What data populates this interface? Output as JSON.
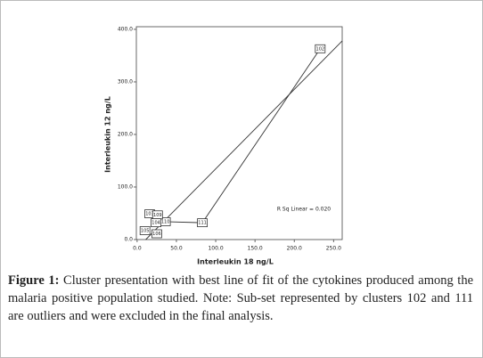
{
  "chart_data": {
    "type": "scatter",
    "x_label": "Interleukin 18 ng/L",
    "y_label": "Interleukin 12 ng/L",
    "annotation": "R Sq Linear = 0.020",
    "xlim": [
      -1,
      261
    ],
    "ylim": [
      0,
      405
    ],
    "xticks": [
      {
        "value": 0,
        "label": "0.0"
      },
      {
        "value": 50,
        "label": "50.0"
      },
      {
        "value": 100,
        "label": "100.0"
      },
      {
        "value": 150,
        "label": "150.0"
      },
      {
        "value": 200,
        "label": "200.0"
      },
      {
        "value": 250,
        "label": "250.0"
      }
    ],
    "yticks": [
      {
        "value": 0,
        "label": "0.0"
      },
      {
        "value": 100,
        "label": "100.0"
      },
      {
        "value": 200,
        "label": "200.0"
      },
      {
        "value": 300,
        "label": "300.0"
      },
      {
        "value": 400,
        "label": "400.0"
      }
    ],
    "point_labels": [
      "102",
      "111",
      "110",
      "103",
      "109",
      "104",
      "105",
      "106"
    ],
    "x": [
      233,
      83,
      36,
      16,
      26,
      24,
      10,
      25
    ],
    "y": [
      363,
      32,
      34,
      49,
      47,
      32,
      17,
      11
    ],
    "lines": [
      {
        "x": [
          233,
          83,
          36
        ],
        "y": [
          363,
          32,
          34
        ]
      },
      {
        "x": [
          11,
          261
        ],
        "y": [
          0,
          378
        ]
      }
    ],
    "color": "#333333"
  },
  "caption": {
    "label": "Figure 1:",
    "text": "Cluster presentation with best line of fit of the cytokines produced among the malaria positive population studied. Note: Sub-set represented by clusters 102 and 111 are outliers and were excluded in the final analysis."
  }
}
